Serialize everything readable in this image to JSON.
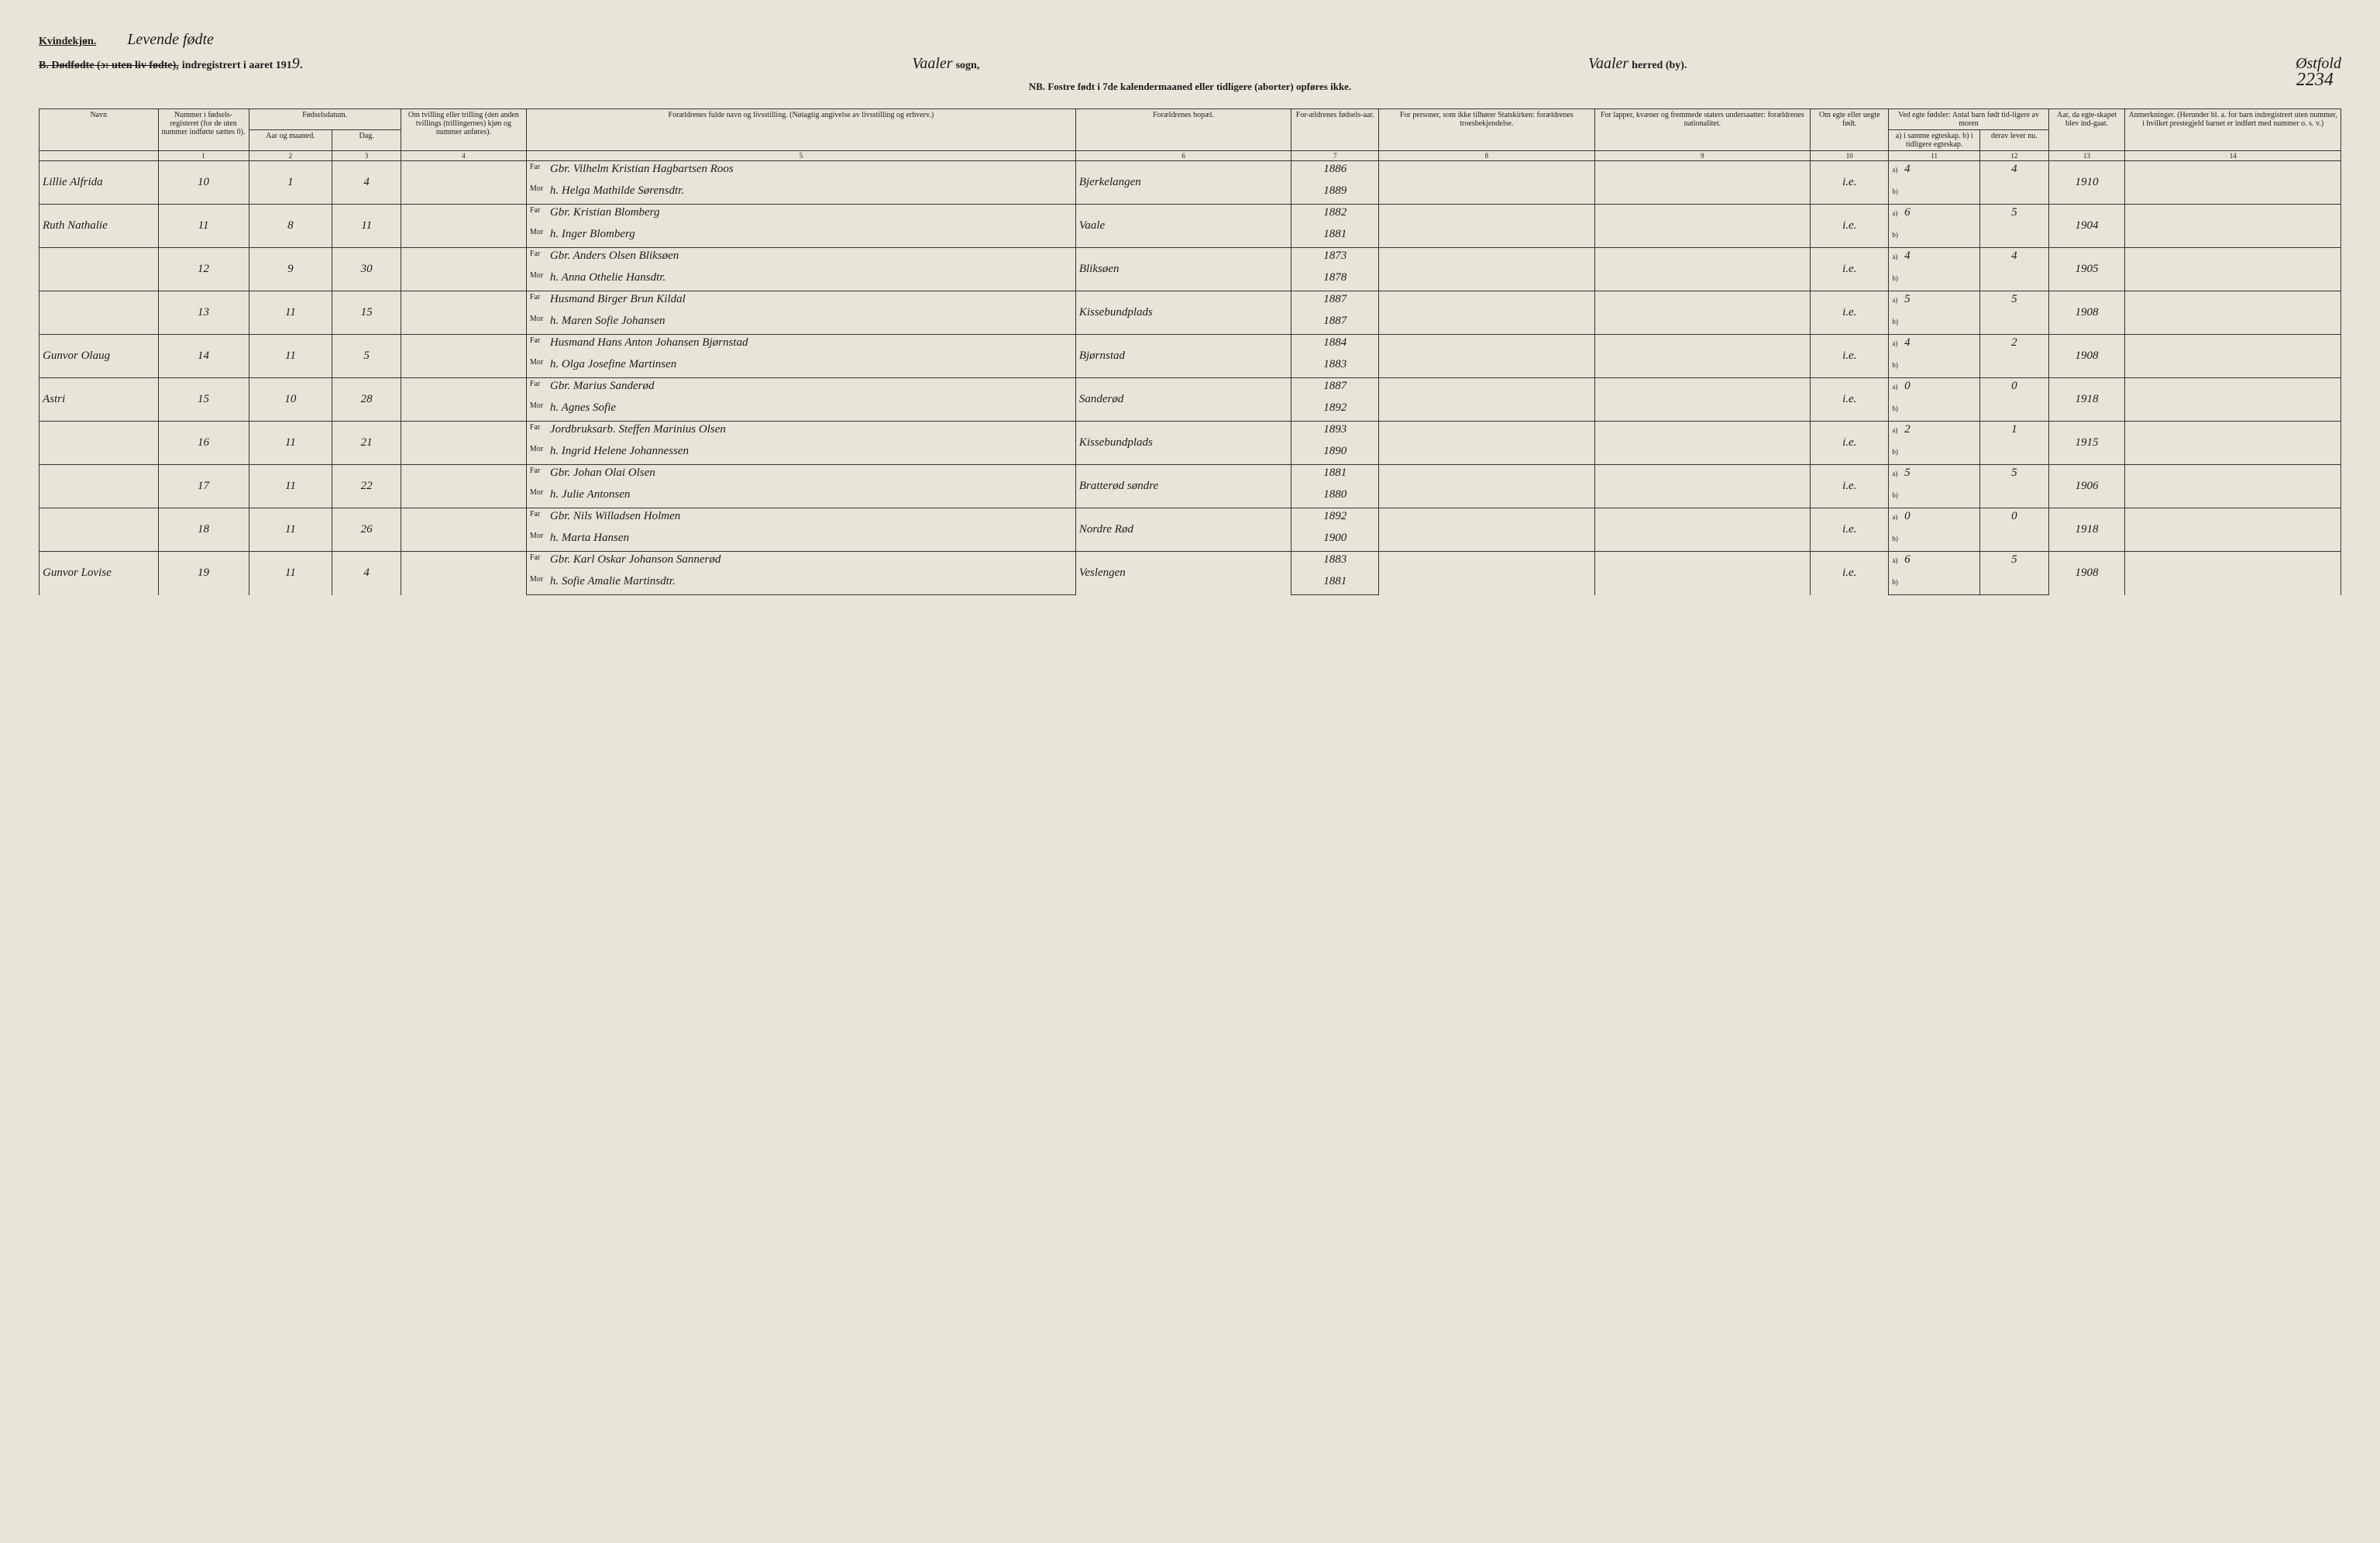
{
  "header": {
    "kvind": "Kvindekjøn.",
    "handwritten_title": "Levende fødte",
    "struck_text": "B. Dødfødte (ɔ: uten liv fødte),",
    "registered": "indregistrert i aaret 191",
    "year_suffix": "9.",
    "sogn_hand": "Vaaler",
    "sogn_label": "sogn,",
    "herred_hand": "Vaaler",
    "herred_label": "herred (by).",
    "county_hand": "Østfold",
    "nb": "NB. Fostre født i 7de kalendermaaned eller tidligere (aborter) opføres ikke.",
    "page_num": "2234"
  },
  "columns": {
    "navn": "Navn",
    "nummer": "Nummer i fødsels-registeret (for de uten nummer indførte sættes 0).",
    "fodselsdatum": "Fødselsdatum.",
    "aar": "Aar og maaned.",
    "dag": "Dag.",
    "tvilling": "Om tvilling eller trilling (den anden tvillings (trillingernes) kjøn og nummer anføres).",
    "foraeldre": "Forældrenes fulde navn og livsstilling. (Nøiagtig angivelse av livsstilling og erhverv.)",
    "bopael": "Forældrenes bopæl.",
    "fodselsaar": "For-ældrenes fødsels-aar.",
    "statskirken": "For personer, som ikke tilhører Statskirken: forældrenes troesbekjendelse.",
    "lapper": "For lapper, kvæner og fremmede staters undersaatter: forældrenes nationalitet.",
    "egte": "Om egte eller uegte født.",
    "fodsler": "Ved egte fødsler: Antal barn født tid-ligere av moren",
    "samme": "a) i samme egteskap.",
    "tidligere": "b) i tidligere egteskap.",
    "lever": "derav lever nu.",
    "aar_egte": "Aar, da egte-skapet blev ind-gaat.",
    "anmerk": "Anmerkninger. (Herunder bl. a. for barn indregistrert uten nummer, i hvilket prestegjeld barnet er indført med nummer o. s. v.)"
  },
  "colnums": [
    "1",
    "2",
    "3",
    "4",
    "5",
    "6",
    "7",
    "8",
    "9",
    "10",
    "11",
    "12",
    "13",
    "14"
  ],
  "rows": [
    {
      "navn": "Lillie Alfrida",
      "num": "10",
      "aar": "1",
      "dag": "4",
      "far": "Gbr. Vilhelm Kristian Hagbartsen Roos",
      "mor": "h. Helga Mathilde Sørensdtr.",
      "bopael": "Bjerkelangen",
      "far_aar": "1886",
      "mor_aar": "1889",
      "egte": "i.e.",
      "a": "4",
      "lever": "4",
      "egteaar": "1910"
    },
    {
      "navn": "Ruth Nathalie",
      "num": "11",
      "aar": "8",
      "dag": "11",
      "far": "Gbr. Kristian Blomberg",
      "mor": "h. Inger Blomberg",
      "bopael": "Vaale",
      "far_aar": "1882",
      "mor_aar": "1881",
      "egte": "i.e.",
      "a": "6",
      "lever": "5",
      "egteaar": "1904"
    },
    {
      "navn": "",
      "num": "12",
      "aar": "9",
      "dag": "30",
      "far": "Gbr. Anders Olsen Bliksøen",
      "mor": "h. Anna Othelie Hansdtr.",
      "bopael": "Bliksøen",
      "far_aar": "1873",
      "mor_aar": "1878",
      "egte": "i.e.",
      "a": "4",
      "lever": "4",
      "egteaar": "1905"
    },
    {
      "navn": "",
      "num": "13",
      "aar": "11",
      "dag": "15",
      "far": "Husmand Birger Brun Kildal",
      "mor": "h. Maren Sofie Johansen",
      "bopael": "Kissebundplads",
      "far_aar": "1887",
      "mor_aar": "1887",
      "egte": "i.e.",
      "a": "5",
      "lever": "5",
      "egteaar": "1908"
    },
    {
      "navn": "Gunvor Olaug",
      "num": "14",
      "aar": "11",
      "dag": "5",
      "far": "Husmand Hans Anton Johansen Bjørnstad",
      "mor": "h. Olga Josefine Martinsen",
      "bopael": "Bjørnstad",
      "far_aar": "1884",
      "mor_aar": "1883",
      "egte": "i.e.",
      "a": "4",
      "lever": "2",
      "egteaar": "1908"
    },
    {
      "navn": "Astri",
      "num": "15",
      "aar": "10",
      "dag": "28",
      "far": "Gbr. Marius Sanderød",
      "mor": "h. Agnes Sofie",
      "bopael": "Sanderød",
      "far_aar": "1887",
      "mor_aar": "1892",
      "egte": "i.e.",
      "a": "0",
      "lever": "0",
      "egteaar": "1918"
    },
    {
      "navn": "",
      "num": "16",
      "aar": "11",
      "dag": "21",
      "far": "Jordbruksarb. Steffen Marinius Olsen",
      "mor": "h. Ingrid Helene Johannessen",
      "bopael": "Kissebundplads",
      "far_aar": "1893",
      "mor_aar": "1890",
      "egte": "i.e.",
      "a": "2",
      "lever": "1",
      "egteaar": "1915"
    },
    {
      "navn": "",
      "num": "17",
      "aar": "11",
      "dag": "22",
      "far": "Gbr. Johan Olai Olsen",
      "mor": "h. Julie Antonsen",
      "bopael": "Bratterød søndre",
      "far_aar": "1881",
      "mor_aar": "1880",
      "egte": "i.e.",
      "a": "5",
      "lever": "5",
      "egteaar": "1906"
    },
    {
      "navn": "",
      "num": "18",
      "aar": "11",
      "dag": "26",
      "far": "Gbr. Nils Willadsen Holmen",
      "mor": "h. Marta Hansen",
      "bopael": "Nordre Rød",
      "far_aar": "1892",
      "mor_aar": "1900",
      "egte": "i.e.",
      "a": "0",
      "lever": "0",
      "egteaar": "1918"
    },
    {
      "navn": "Gunvor Lovise",
      "num": "19",
      "aar": "11",
      "dag": "4",
      "far": "Gbr. Karl Oskar Johanson Sannerød",
      "mor": "h. Sofie Amalie Martinsdtr.",
      "bopael": "Veslengen",
      "far_aar": "1883",
      "mor_aar": "1881",
      "egte": "i.e.",
      "a": "6",
      "lever": "5",
      "egteaar": "1908"
    }
  ],
  "styling": {
    "background_color": "#e8e5d8",
    "border_color": "#333333",
    "printed_font": "Georgia, serif",
    "handwritten_font": "Brush Script MT, cursive",
    "header_fontsize": 14,
    "cell_fontsize": 11,
    "handwritten_fontsize": 15
  }
}
